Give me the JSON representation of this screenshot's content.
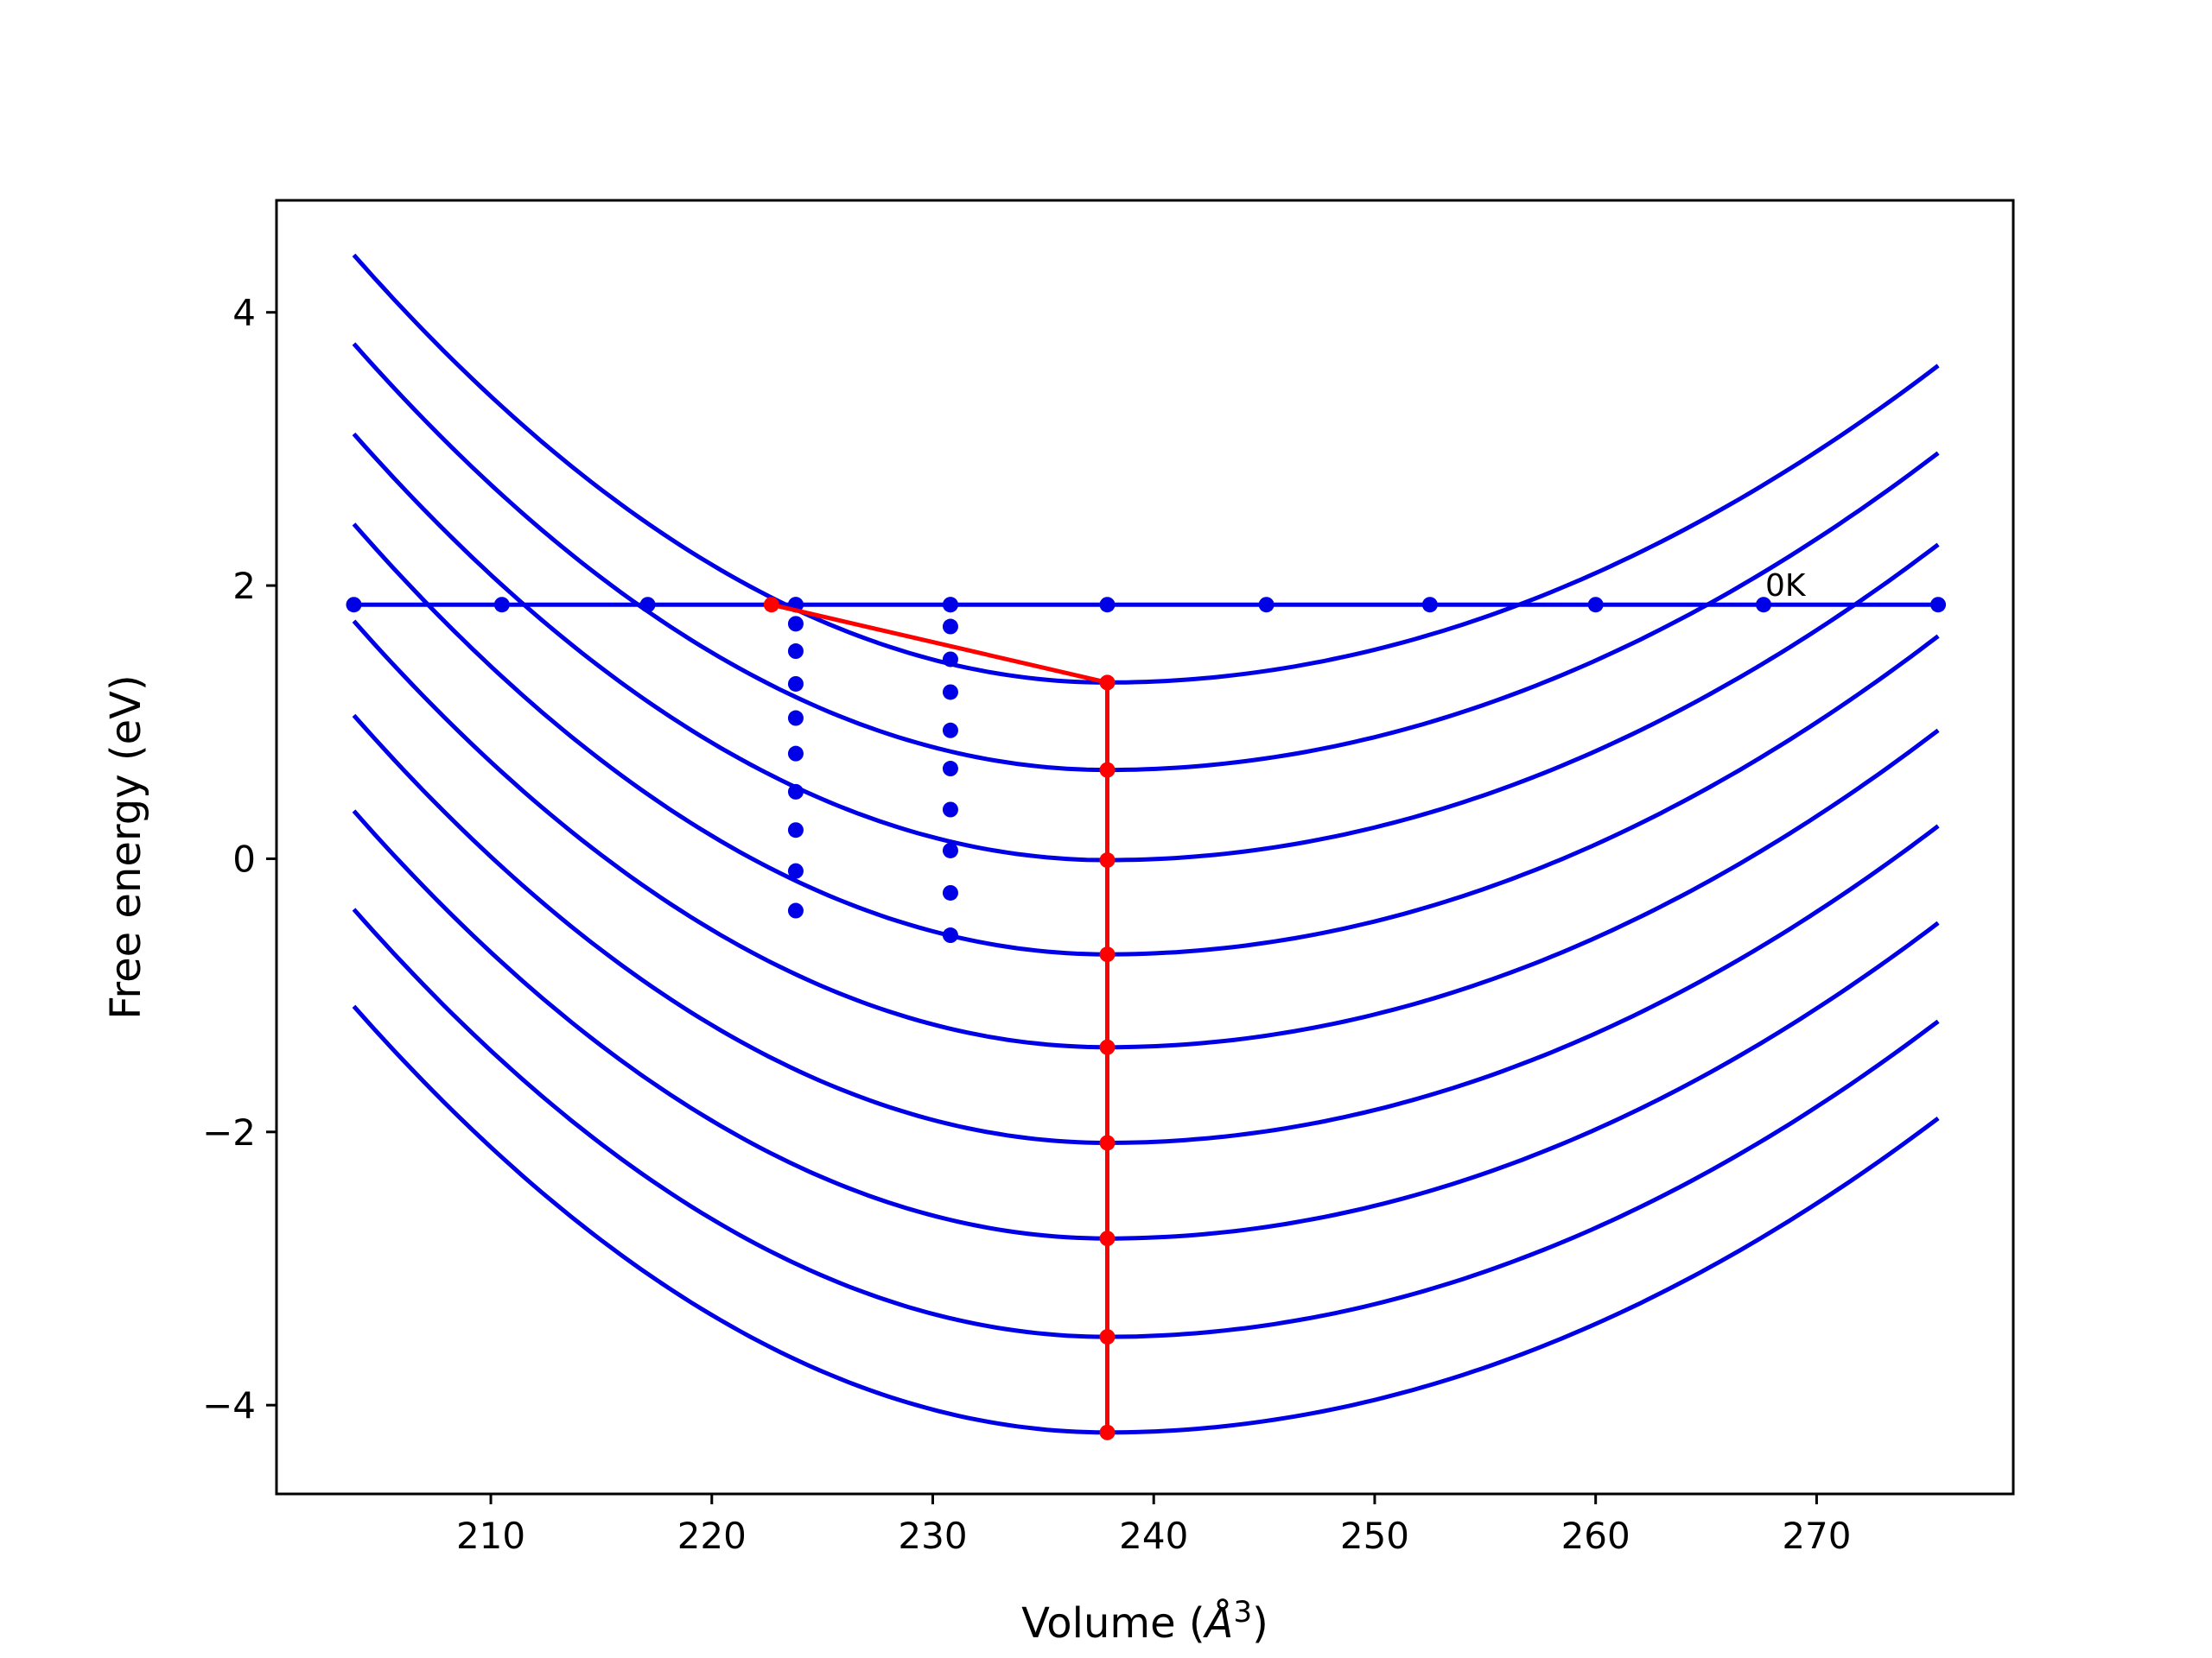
{
  "chart_data": {
    "type": "line",
    "xlabel": "Volume (Å³)",
    "xlabel_main": "Volume (",
    "xlabel_unit": "Å",
    "xlabel_sup": "3",
    "xlabel_close": ")",
    "ylabel": "Free energy (eV)",
    "xlim": [
      200.3,
      278.9
    ],
    "ylim": [
      -4.65,
      4.82
    ],
    "x_ticks": [
      210,
      220,
      230,
      240,
      250,
      260,
      270
    ],
    "y_ticks": [
      4,
      2,
      0,
      -2,
      -4
    ],
    "y_tick_labels": [
      "4",
      "2",
      "0",
      "−2",
      "−4"
    ],
    "grid": false,
    "colors": {
      "curves": "#0000e6",
      "highlight": "#ff0000"
    },
    "curves": {
      "x_range": [
        203.8,
        275.5
      ],
      "v0": 237.9,
      "minima": [
        1.29,
        0.65,
        -0.01,
        -0.7,
        -1.38,
        -2.08,
        -2.78,
        -3.5,
        -4.2
      ],
      "left_end_values": [
        4.42,
        3.77,
        3.11,
        2.45,
        1.74,
        1.05,
        0.35,
        -0.37,
        -1.08
      ],
      "right_end_values": [
        3.61,
        2.97,
        2.3,
        1.63,
        0.94,
        0.24,
        -0.47,
        -1.19,
        -1.9
      ]
    },
    "horizontal_line": {
      "y": 1.86,
      "x_range": [
        203.8,
        275.5
      ],
      "points_x": [
        203.8,
        210.5,
        217.1,
        223.8,
        230.8,
        237.9,
        245.1,
        252.5,
        260.0,
        267.6,
        275.5
      ],
      "label": "0K"
    },
    "dotted_columns": [
      {
        "x": 223.8,
        "y": [
          1.86,
          1.72,
          1.52,
          1.28,
          1.03,
          0.77,
          0.49,
          0.21,
          -0.09,
          -0.38
        ]
      },
      {
        "x": 230.8,
        "y": [
          1.86,
          1.7,
          1.46,
          1.22,
          0.94,
          0.66,
          0.36,
          0.06,
          -0.25,
          -0.56
        ]
      }
    ],
    "red_path": {
      "points": [
        {
          "x": 222.7,
          "y": 1.86
        },
        {
          "x": 237.9,
          "y": 1.29
        },
        {
          "x": 237.9,
          "y": 0.65
        },
        {
          "x": 237.9,
          "y": -0.01
        },
        {
          "x": 237.9,
          "y": -0.7
        },
        {
          "x": 237.9,
          "y": -1.38
        },
        {
          "x": 237.9,
          "y": -2.08
        },
        {
          "x": 237.9,
          "y": -2.78
        },
        {
          "x": 237.9,
          "y": -3.5
        },
        {
          "x": 237.9,
          "y": -4.2
        }
      ]
    }
  }
}
